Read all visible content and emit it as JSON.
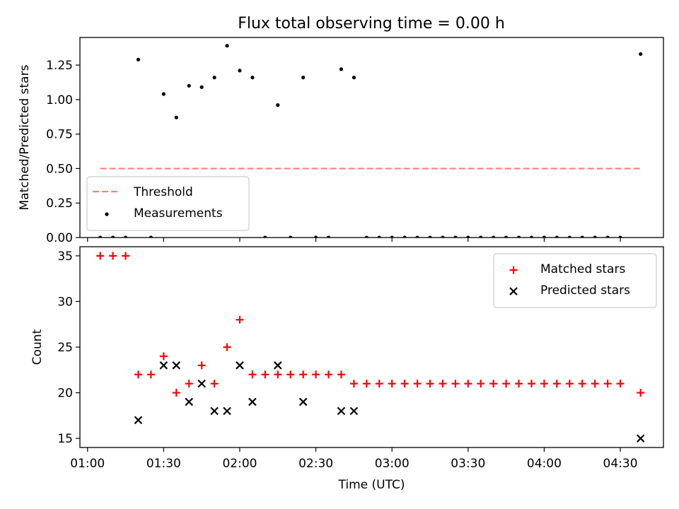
{
  "figure_title": "Flux total observing time = 0.00 h",
  "chart_data": [
    {
      "type": "scatter",
      "ylabel": "Matched/Predicted stars",
      "xlabel": "",
      "xlim": [
        "00:57",
        "04:47"
      ],
      "ylim": [
        0,
        1.45
      ],
      "yticks": [
        0.0,
        0.25,
        0.5,
        0.75,
        1.0,
        1.25
      ],
      "ytick_labels": [
        "0.00",
        "0.25",
        "0.50",
        "0.75",
        "1.00",
        "1.25"
      ],
      "xticks": [
        "01:00",
        "01:30",
        "02:00",
        "02:30",
        "03:00",
        "03:30",
        "04:00",
        "04:30"
      ],
      "grid": false,
      "legend": "lower-left",
      "series": [
        {
          "name": "Threshold",
          "kind": "dashed-line",
          "color": "#ff7f7f",
          "x": [
            "01:05",
            "04:38"
          ],
          "y": [
            0.5,
            0.5
          ]
        },
        {
          "name": "Measurements",
          "kind": "dot",
          "color": "#000000",
          "x": [
            "01:05",
            "01:10",
            "01:15",
            "01:20",
            "01:25",
            "01:30",
            "01:35",
            "01:40",
            "01:45",
            "01:50",
            "01:55",
            "02:00",
            "02:05",
            "02:10",
            "02:15",
            "02:20",
            "02:25",
            "02:30",
            "02:35",
            "02:40",
            "02:45",
            "02:50",
            "02:55",
            "03:00",
            "03:05",
            "03:10",
            "03:15",
            "03:20",
            "03:25",
            "03:30",
            "03:35",
            "03:40",
            "03:45",
            "03:50",
            "03:55",
            "04:00",
            "04:05",
            "04:10",
            "04:15",
            "04:20",
            "04:25",
            "04:30",
            "04:38"
          ],
          "y": [
            0,
            0,
            0,
            1.29,
            0,
            1.04,
            0.87,
            1.1,
            1.09,
            1.16,
            1.39,
            1.21,
            1.16,
            0,
            0.96,
            0,
            1.16,
            0,
            0,
            1.22,
            1.16,
            0,
            0,
            0,
            0,
            0,
            0,
            0,
            0,
            0,
            0,
            0,
            0,
            0,
            0,
            0,
            0,
            0,
            0,
            0,
            0,
            0,
            1.33
          ]
        }
      ]
    },
    {
      "type": "scatter",
      "ylabel": "Count",
      "xlabel": "Time (UTC)",
      "xlim": [
        "00:57",
        "04:47"
      ],
      "ylim": [
        14.0,
        36.0
      ],
      "yticks": [
        15,
        20,
        25,
        30,
        35
      ],
      "ytick_labels": [
        "15",
        "20",
        "25",
        "30",
        "35"
      ],
      "xticks": [
        "01:00",
        "01:30",
        "02:00",
        "02:30",
        "03:00",
        "03:30",
        "04:00",
        "04:30"
      ],
      "grid": false,
      "legend": "upper-right",
      "series": [
        {
          "name": "Matched stars",
          "kind": "plus",
          "color": "#ff0000",
          "x": [
            "01:05",
            "01:10",
            "01:15",
            "01:20",
            "01:25",
            "01:30",
            "01:35",
            "01:40",
            "01:45",
            "01:50",
            "01:55",
            "02:00",
            "02:05",
            "02:10",
            "02:15",
            "02:20",
            "02:25",
            "02:30",
            "02:35",
            "02:40",
            "02:45",
            "02:50",
            "02:55",
            "03:00",
            "03:05",
            "03:10",
            "03:15",
            "03:20",
            "03:25",
            "03:30",
            "03:35",
            "03:40",
            "03:45",
            "03:50",
            "03:55",
            "04:00",
            "04:05",
            "04:10",
            "04:15",
            "04:20",
            "04:25",
            "04:30",
            "04:38"
          ],
          "y": [
            35,
            35,
            35,
            22,
            22,
            24,
            20,
            21,
            23,
            21,
            25,
            28,
            22,
            22,
            22,
            22,
            22,
            22,
            22,
            22,
            21,
            21,
            21,
            21,
            21,
            21,
            21,
            21,
            21,
            21,
            21,
            21,
            21,
            21,
            21,
            21,
            21,
            21,
            21,
            21,
            21,
            21,
            20
          ]
        },
        {
          "name": "Predicted stars",
          "kind": "x",
          "color": "#000000",
          "x": [
            "01:20",
            "01:30",
            "01:35",
            "01:40",
            "01:45",
            "01:50",
            "01:55",
            "02:00",
            "02:05",
            "02:15",
            "02:25",
            "02:40",
            "02:45",
            "04:38"
          ],
          "y": [
            17,
            23,
            23,
            19,
            21,
            18,
            18,
            23,
            19,
            23,
            19,
            18,
            18,
            15
          ]
        }
      ]
    }
  ]
}
